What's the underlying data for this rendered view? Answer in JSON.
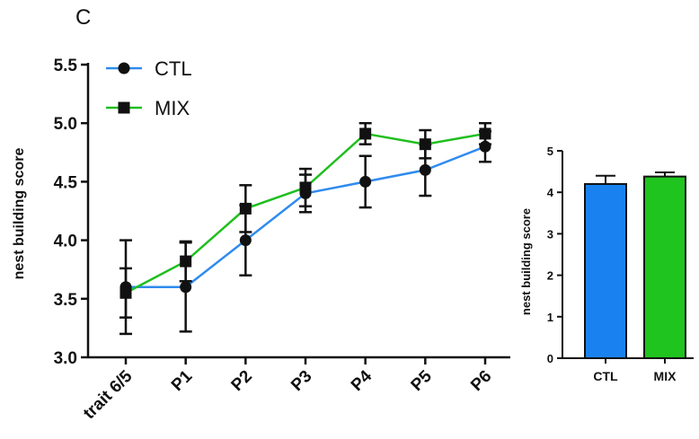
{
  "panel_label": "C",
  "chart_data": [
    {
      "type": "line",
      "title": "",
      "xlabel": "",
      "ylabel": "nest building score",
      "categories": [
        "trait 6/5",
        "P1",
        "P2",
        "P3",
        "P4",
        "P5",
        "P6"
      ],
      "ylim": [
        3.0,
        5.5
      ],
      "yticks": [
        "3.0",
        "3.5",
        "4.0",
        "4.5",
        "5.0",
        "5.5"
      ],
      "legend_position": "top-left",
      "series": [
        {
          "name": "CTL",
          "color": "#2f8bef",
          "marker": "circle",
          "values": [
            3.6,
            3.6,
            4.0,
            4.4,
            4.5,
            4.6,
            4.8
          ],
          "err": [
            0.4,
            0.38,
            0.3,
            0.16,
            0.22,
            0.22,
            0.13
          ]
        },
        {
          "name": "MIX",
          "color": "#1fbf1f",
          "marker": "square",
          "values": [
            3.55,
            3.82,
            4.27,
            4.45,
            4.91,
            4.82,
            4.91
          ],
          "err": [
            0.21,
            0.17,
            0.2,
            0.16,
            0.09,
            0.12,
            0.09
          ]
        }
      ]
    },
    {
      "type": "bar",
      "title": "",
      "xlabel": "",
      "ylabel": "nest building score",
      "categories": [
        "CTL",
        "MIX"
      ],
      "values": [
        4.2,
        4.38
      ],
      "err": [
        0.2,
        0.1
      ],
      "colors": [
        "#1a82f0",
        "#1fc41f"
      ],
      "ylim": [
        0,
        5
      ],
      "yticks": [
        "0",
        "1",
        "2",
        "3",
        "4",
        "5"
      ]
    }
  ]
}
